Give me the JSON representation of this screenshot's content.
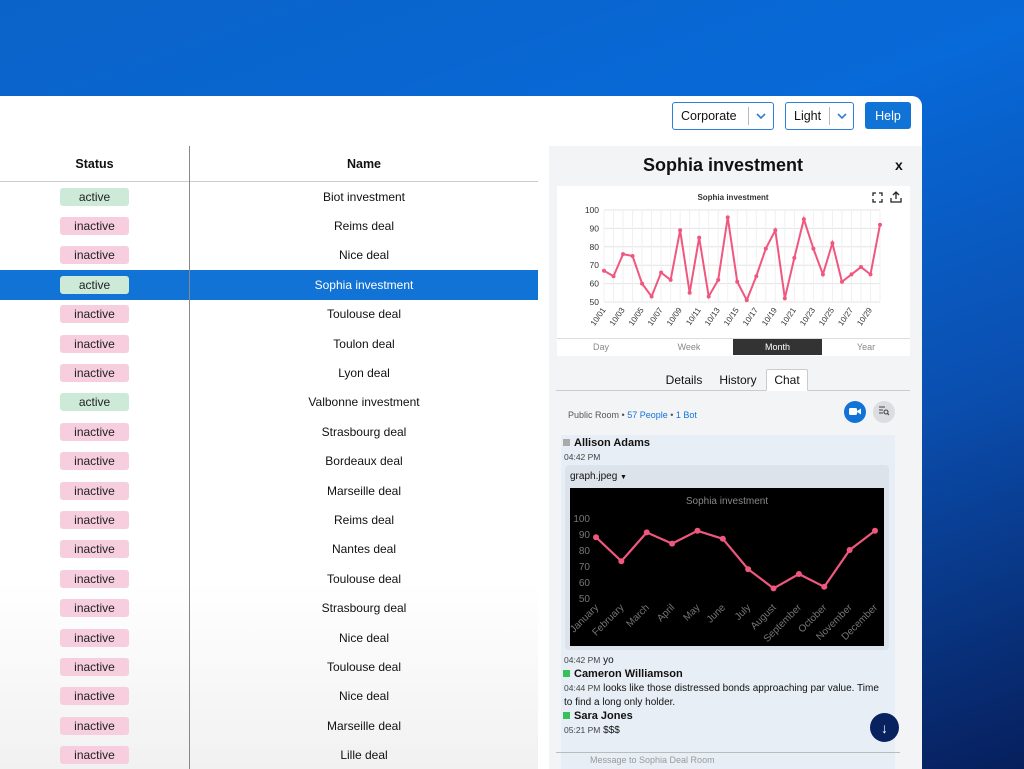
{
  "toolbar": {
    "theme_select": "Corporate",
    "mode_select": "Light",
    "help_label": "Help"
  },
  "grid": {
    "headers": [
      "Status",
      "Name"
    ],
    "rows": [
      {
        "status": "active",
        "name": "Biot investment"
      },
      {
        "status": "inactive",
        "name": "Reims deal"
      },
      {
        "status": "inactive",
        "name": "Nice deal"
      },
      {
        "status": "active",
        "name": "Sophia investment",
        "selected": true
      },
      {
        "status": "inactive",
        "name": "Toulouse deal"
      },
      {
        "status": "inactive",
        "name": "Toulon deal"
      },
      {
        "status": "inactive",
        "name": "Lyon deal"
      },
      {
        "status": "active",
        "name": "Valbonne investment"
      },
      {
        "status": "inactive",
        "name": "Strasbourg deal"
      },
      {
        "status": "inactive",
        "name": "Bordeaux deal"
      },
      {
        "status": "inactive",
        "name": "Marseille deal"
      },
      {
        "status": "inactive",
        "name": "Reims deal"
      },
      {
        "status": "inactive",
        "name": "Nantes deal"
      },
      {
        "status": "inactive",
        "name": "Toulouse deal"
      },
      {
        "status": "inactive",
        "name": "Strasbourg deal"
      },
      {
        "status": "inactive",
        "name": "Nice deal"
      },
      {
        "status": "inactive",
        "name": "Toulouse deal"
      },
      {
        "status": "inactive",
        "name": "Nice deal"
      },
      {
        "status": "inactive",
        "name": "Marseille deal"
      },
      {
        "status": "inactive",
        "name": "Lille deal"
      }
    ]
  },
  "panel": {
    "title": "Sophia investment",
    "close": "x",
    "range_tabs": [
      "Day",
      "Week",
      "Month",
      "Year"
    ],
    "active_range": "Month",
    "tabs": [
      "Details",
      "History",
      "Chat"
    ],
    "active_tab": "Chat",
    "room": {
      "label": "Public Room",
      "people": "57 People",
      "bots": "1 Bot"
    },
    "messages": {
      "m1": {
        "author": "Allison Adams",
        "time": "04:42 PM"
      },
      "attachment": "graph.jpeg",
      "m2": {
        "time": "04:42 PM",
        "text": "yo"
      },
      "m3": {
        "author": "Cameron Williamson",
        "time": "04:44 PM",
        "text": "looks like those distressed bonds approaching par value. Time",
        "text2": "to find a long only holder."
      },
      "m4": {
        "author": "Sara Jones",
        "time": "05:21 PM",
        "text": "$$$"
      }
    },
    "compose_placeholder": "Message to Sophia Deal Room"
  },
  "colors": {
    "accent": "#1273d6",
    "line": "#f0577f",
    "active": "#cde9d8",
    "inactive": "#f6cede"
  },
  "chart_data": [
    {
      "type": "line",
      "title": "Sophia investment",
      "x": [
        "10/01",
        "10/02",
        "10/03",
        "10/04",
        "10/05",
        "10/06",
        "10/07",
        "10/08",
        "10/09",
        "10/10",
        "10/11",
        "10/12",
        "10/13",
        "10/14",
        "10/15",
        "10/16",
        "10/17",
        "10/18",
        "10/19",
        "10/20",
        "10/21",
        "10/22",
        "10/23",
        "10/24",
        "10/25",
        "10/26",
        "10/27",
        "10/28",
        "10/29",
        "10/30"
      ],
      "xticks": [
        "10/01",
        "10/03",
        "10/05",
        "10/07",
        "10/09",
        "10/11",
        "10/13",
        "10/15",
        "10/17",
        "10/19",
        "10/21",
        "10/23",
        "10/25",
        "10/27",
        "10/29"
      ],
      "values": [
        67,
        64,
        76,
        75,
        60,
        53,
        66,
        62,
        89,
        55,
        85,
        53,
        62,
        96,
        61,
        51,
        64,
        79,
        89,
        52,
        74,
        95,
        79,
        65,
        82,
        61,
        65,
        69,
        65,
        92
      ],
      "ylim": [
        50,
        100
      ],
      "yticks": [
        50,
        60,
        70,
        80,
        90,
        100
      ],
      "grid": true
    },
    {
      "type": "line",
      "title": "Sophia investment",
      "categories": [
        "January",
        "February",
        "March",
        "April",
        "May",
        "June",
        "July",
        "August",
        "September",
        "October",
        "November",
        "December"
      ],
      "values": [
        88,
        73,
        91,
        84,
        92,
        87,
        68,
        56,
        65,
        57,
        80,
        92
      ],
      "ylim": [
        50,
        100
      ],
      "yticks": [
        50,
        60,
        70,
        80,
        90,
        100
      ],
      "grid": false
    }
  ]
}
